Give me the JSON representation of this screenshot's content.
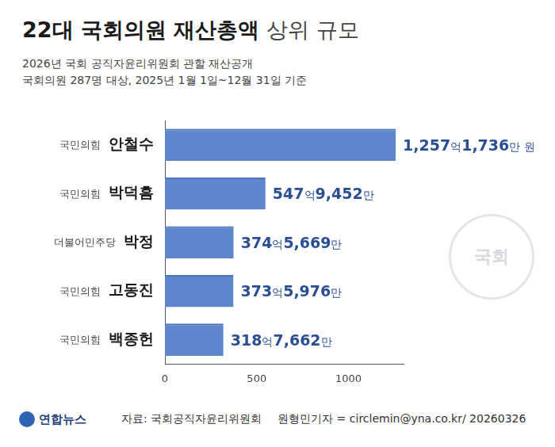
{
  "chart_data": {
    "type": "bar",
    "orientation": "horizontal",
    "title": "22대 국회의원 재산총액 상위 규모",
    "subtitle": [
      "2026년 국회 공직자윤리위원회 관할 재산공개",
      "국회의원 287명 대상, 2025년 1월 1일~12월 31일 기준"
    ],
    "categories": [
      "안철수",
      "박덕흠",
      "박정",
      "고동진",
      "백종헌"
    ],
    "parties": [
      "국민의힘",
      "국민의힘",
      "더불어민주당",
      "국민의힘",
      "국민의힘"
    ],
    "values": [
      1257.1736,
      547.9452,
      374.5669,
      373.5976,
      318.7662
    ],
    "value_labels": [
      "1,257억1,736만 원",
      "547억9,452만",
      "374억5,669만",
      "373억5,976만",
      "318억7,662만"
    ],
    "color": "#5d86cc",
    "xlim": [
      0,
      1300
    ],
    "xticks": [
      0,
      500,
      1000
    ],
    "grid": false,
    "data_labels": true,
    "logo": "연합뉴스",
    "source": "자료: 국회공직자윤리위원회",
    "credit": "원형민기자 = circlemin@yna.co.kr/ 20260326",
    "emblem": "국회"
  }
}
